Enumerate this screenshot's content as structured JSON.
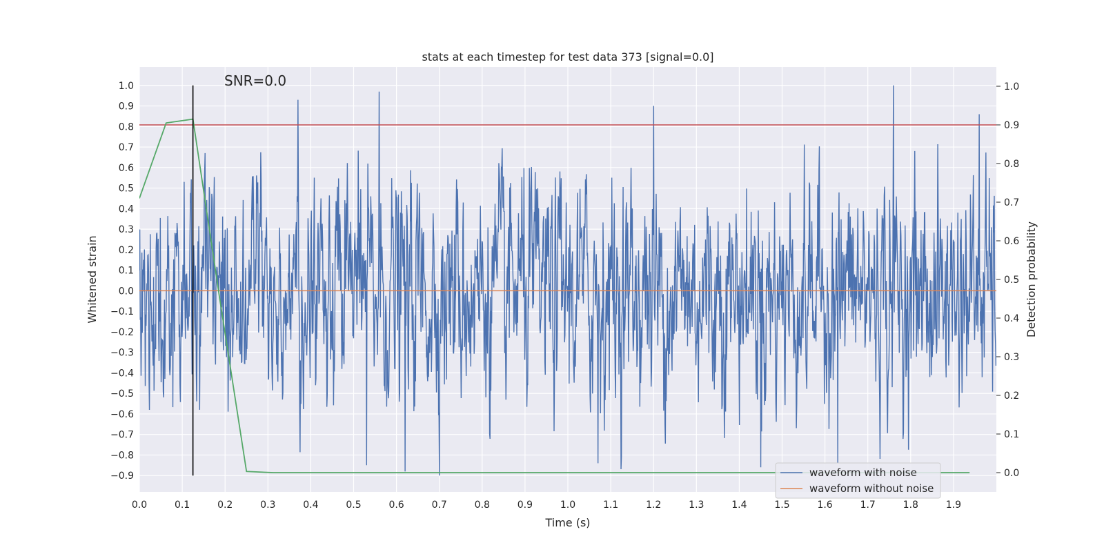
{
  "chart_data": {
    "type": "line",
    "title": "stats at each timestep for test data 373 [signal=0.0]",
    "xlabel": "Time (s)",
    "ylabel": "Whitened strain",
    "ylabel_right": "Detection probability",
    "annotation": "SNR=0.0",
    "xlim": [
      0.0,
      2.0
    ],
    "ylim": [
      -0.98,
      1.09
    ],
    "ylim_right": [
      -0.05,
      1.05
    ],
    "x_ticks": [
      0.0,
      0.1,
      0.2,
      0.3,
      0.4,
      0.5,
      0.6,
      0.7,
      0.8,
      0.9,
      1.0,
      1.1,
      1.2,
      1.3,
      1.4,
      1.5,
      1.6,
      1.7,
      1.8,
      1.9
    ],
    "y_ticks": [
      1.0,
      0.9,
      0.8,
      0.7,
      0.6,
      0.5,
      0.4,
      0.3,
      0.2,
      0.1,
      0.0,
      -0.1,
      -0.2,
      -0.3,
      -0.4,
      -0.5,
      -0.6,
      -0.7,
      -0.8,
      -0.9
    ],
    "y_ticks_right": [
      1.0,
      0.9,
      0.8,
      0.7,
      0.6,
      0.5,
      0.4,
      0.3,
      0.2,
      0.1,
      0.0
    ],
    "grid": true,
    "legend_position": "lower-right",
    "series": [
      {
        "name": "waveform with noise",
        "color": "#4c72b0",
        "axis": "left",
        "kind": "noise",
        "n_points": 2048,
        "range": [
          -0.9,
          1.0
        ],
        "notable_peaks": [
          {
            "x": 0.37,
            "y": 0.93
          },
          {
            "x": 0.56,
            "y": 0.97
          },
          {
            "x": 1.2,
            "y": 0.9
          },
          {
            "x": 1.76,
            "y": 1.0
          },
          {
            "x": 1.96,
            "y": 0.86
          },
          {
            "x": 0.53,
            "y": -0.85
          },
          {
            "x": 0.62,
            "y": -0.88
          },
          {
            "x": 1.07,
            "y": -0.84
          },
          {
            "x": 1.63,
            "y": -0.84
          },
          {
            "x": 1.45,
            "y": -0.86
          }
        ]
      },
      {
        "name": "waveform without noise",
        "color": "#dd8452",
        "axis": "left",
        "x": [
          0.0,
          2.0
        ],
        "y": [
          0.0,
          0.0
        ]
      },
      {
        "color": "#55a868",
        "axis": "right",
        "x": [
          0.0,
          0.0625,
          0.125,
          0.1875,
          0.25,
          0.3125,
          0.375,
          0.4375,
          0.5,
          0.5625,
          0.625,
          0.6875,
          0.75,
          0.8125,
          0.875,
          0.9375,
          1.0,
          1.0625,
          1.125,
          1.1875,
          1.25,
          1.3125,
          1.375,
          1.4375,
          1.5,
          1.5625,
          1.625,
          1.6875,
          1.75,
          1.8125,
          1.875,
          1.9375
        ],
        "y": [
          0.71,
          0.905,
          0.915,
          0.45,
          0.003,
          0.0,
          0.0,
          0.0,
          0.0,
          0.0,
          0.0,
          0.0,
          0.0,
          0.0,
          0.0,
          0.0,
          0.0,
          0.0,
          0.0,
          0.0,
          0.0,
          0.0,
          0.0,
          0.0,
          0.0,
          0.0,
          0.0,
          0.0,
          0.0,
          0.0,
          0.0,
          0.0
        ]
      }
    ],
    "threshold": {
      "axis": "right",
      "y": 0.9,
      "color": "#c44e52"
    },
    "vline": {
      "x": 0.125,
      "y_range": [
        -0.9,
        1.0
      ],
      "color": "#000000"
    }
  }
}
